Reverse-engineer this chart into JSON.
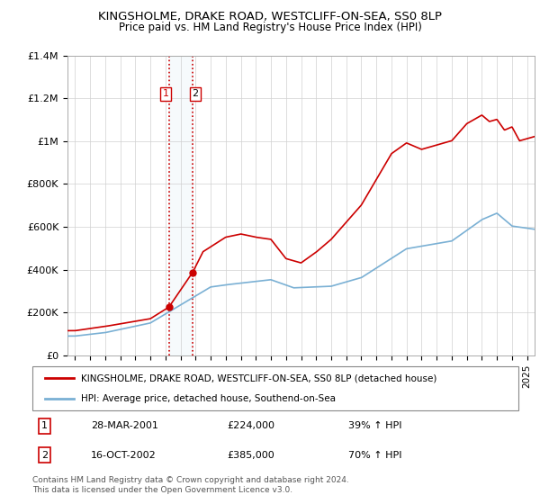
{
  "title": "KINGSHOLME, DRAKE ROAD, WESTCLIFF-ON-SEA, SS0 8LP",
  "subtitle": "Price paid vs. HM Land Registry's House Price Index (HPI)",
  "ylim": [
    0,
    1400000
  ],
  "yticks": [
    0,
    200000,
    400000,
    600000,
    800000,
    1000000,
    1200000,
    1400000
  ],
  "ytick_labels": [
    "£0",
    "£200K",
    "£400K",
    "£600K",
    "£800K",
    "£1M",
    "£1.2M",
    "£1.4M"
  ],
  "line1_color": "#cc0000",
  "line2_color": "#7ab0d4",
  "legend1": "KINGSHOLME, DRAKE ROAD, WESTCLIFF-ON-SEA, SS0 8LP (detached house)",
  "legend2": "HPI: Average price, detached house, Southend-on-Sea",
  "transaction1_date": "28-MAR-2001",
  "transaction1_price": 224000,
  "transaction1_hpi": "39% ↑ HPI",
  "transaction2_date": "16-OCT-2002",
  "transaction2_price": 385000,
  "transaction2_hpi": "70% ↑ HPI",
  "footnote": "Contains HM Land Registry data © Crown copyright and database right 2024.\nThis data is licensed under the Open Government Licence v3.0.",
  "vline1_x": 2001.22,
  "vline2_x": 2002.79,
  "xmin": 1994.5,
  "xmax": 2025.5
}
